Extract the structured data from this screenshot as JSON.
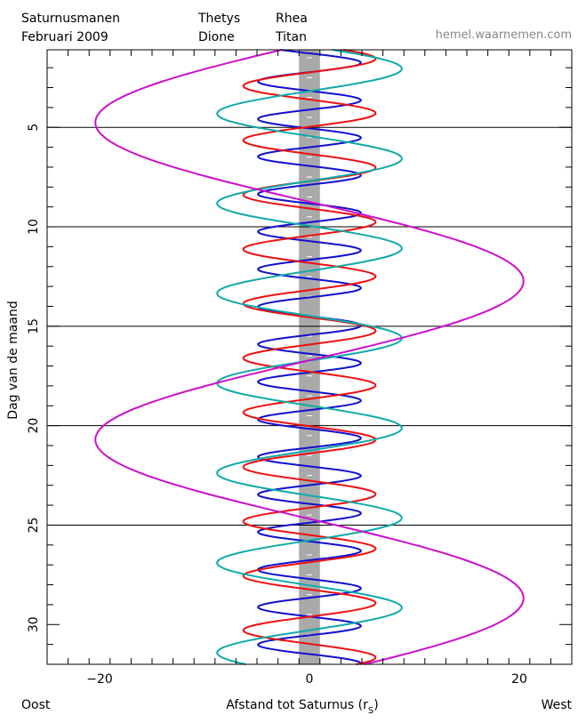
{
  "chart_data": {
    "type": "line",
    "title": "Saturnusmanen",
    "subtitle": "Februari   2009",
    "source": "hemel.waarnemen.com",
    "xlabel": "Afstand tot Saturnus (r",
    "xlabel_sub": "S",
    "xlabel_close": ")",
    "ylabel": "Dag van de maand",
    "x_left_label": "Oost",
    "x_right_label": "West",
    "xlim": [
      -25,
      25
    ],
    "ylim": [
      1.1,
      32
    ],
    "x_ticks": [
      -20,
      0,
      20
    ],
    "x_tick_labels": [
      "−20",
      "0",
      "20"
    ],
    "y_ticks": [
      5,
      10,
      15,
      20,
      25,
      30
    ],
    "y_tick_labels": [
      "5",
      "10",
      "15",
      "20",
      "25",
      "30"
    ],
    "day_lines": [
      5,
      10,
      15,
      20,
      25
    ],
    "planet_band": [
      -1,
      1
    ],
    "legend_placement": "top",
    "series": [
      {
        "name": "Thetys",
        "color": "#1010d0",
        "amplitude": 4.9,
        "period_days": 1.888,
        "t0": 1.75
      },
      {
        "name": "Dione",
        "color": "#ee1010",
        "amplitude": 6.3,
        "period_days": 2.737,
        "t0": 1.55
      },
      {
        "name": "Rhea",
        "color": "#10aaaa",
        "amplitude": 8.8,
        "period_days": 4.518,
        "t0": 2.05
      },
      {
        "name": "Titan",
        "color": "#cc10cc",
        "amplitude": 20.4,
        "period_days": 15.945,
        "t0": 12.73
      }
    ]
  }
}
